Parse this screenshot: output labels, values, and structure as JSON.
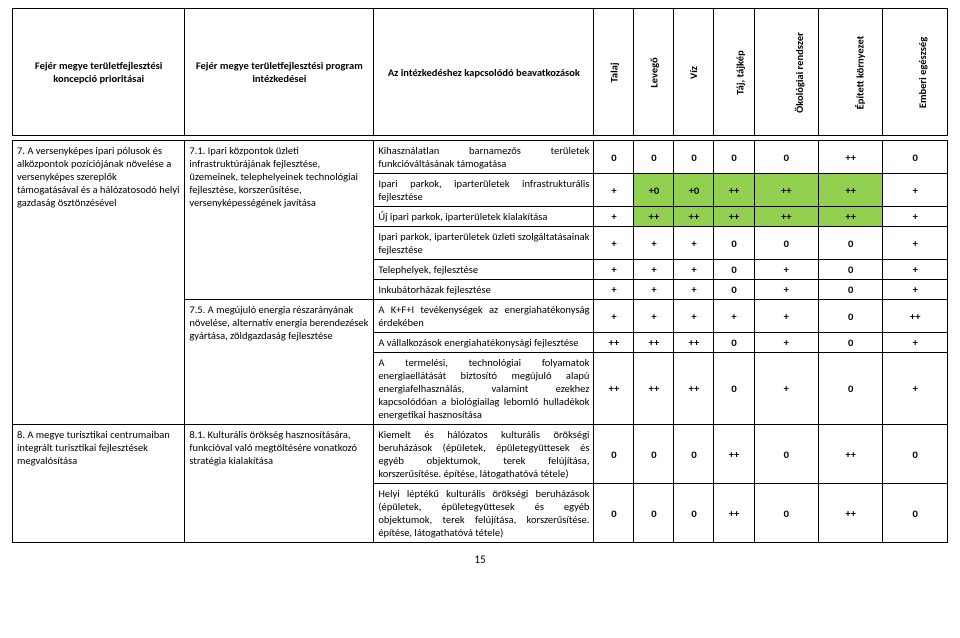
{
  "headers": {
    "c1": "Fejér megye területfejlesztési koncepció prioritásai",
    "c2": "Fejér megye területfejlesztési program intézkedései",
    "c3": "Az intézkedéshez kapcsolódó beavatkozások",
    "v1": "Talaj",
    "v2": "Levegő",
    "v3": "Víz",
    "v4": "Táj, tájkép",
    "v5": "Ökológiai rendszer",
    "v6": "Épített környezet",
    "v7": "Emberi egészség"
  },
  "pri1": "7. A versenyképes ipari pólusok és alközpontok pozíciójának növelése a versenyképes szereplők támogatásával és a hálózatosodó helyi gazdaság ösztönzésével",
  "pri2": "8. A megye turisztikai centrumaiban integrált turisztikai fejlesztések megvalósítása",
  "int1": "7.1. Ipari központok üzleti infrastruktúrájának fejlesztése, üzemeinek, telephelyeinek technológiai fejlesztése, korszerűsítése, versenyképességének javítása",
  "int2": "7.5. A megújuló energia részarányának növelése, alternatív energia berendezések gyártása, zöldgazdaság fejlesztése",
  "int3": "8.1. Kulturális örökség hasznosítására, funkcióval való megtöltésére vonatkozó stratégia kialakítása",
  "rows": [
    {
      "b": "Kihasználatlan barnamezős területek funkcióváltásának támogatása",
      "v": [
        "0",
        "0",
        "0",
        "0",
        "0",
        "++",
        "0"
      ],
      "g": [
        0,
        0,
        0,
        0,
        0,
        0,
        0
      ]
    },
    {
      "b": "Ipari parkok, iparterületek infrastrukturális fejlesztése",
      "v": [
        "+",
        "+0",
        "+0",
        "++",
        "++",
        "++",
        "+"
      ],
      "g": [
        0,
        1,
        1,
        1,
        1,
        1,
        0
      ]
    },
    {
      "b": "Új ipari parkok, iparterületek kialakítása",
      "v": [
        "+",
        "++",
        "++",
        "++",
        "++",
        "++",
        "+"
      ],
      "g": [
        0,
        1,
        1,
        1,
        1,
        1,
        0
      ]
    },
    {
      "b": "Ipari parkok, iparterületek üzleti szolgáltatásainak fejlesztése",
      "v": [
        "+",
        "+",
        "+",
        "0",
        "0",
        "0",
        "+"
      ],
      "g": [
        0,
        0,
        0,
        0,
        0,
        0,
        0
      ]
    },
    {
      "b": "Telephelyek, fejlesztése",
      "v": [
        "+",
        "+",
        "+",
        "0",
        "+",
        "0",
        "+"
      ],
      "g": [
        0,
        0,
        0,
        0,
        0,
        0,
        0
      ]
    },
    {
      "b": "Inkubátorházak fejlesztése",
      "v": [
        "+",
        "+",
        "+",
        "0",
        "+",
        "0",
        "+"
      ],
      "g": [
        0,
        0,
        0,
        0,
        0,
        0,
        0
      ]
    },
    {
      "b": "A K+F+I tevékenységek az energiahatékonyság érdekében",
      "v": [
        "+",
        "+",
        "+",
        "+",
        "+",
        "0",
        "++"
      ],
      "g": [
        0,
        0,
        0,
        0,
        0,
        0,
        0
      ]
    },
    {
      "b": "A vállalkozások energiahatékonysági fejlesztése",
      "v": [
        "++",
        "++",
        "++",
        "0",
        "+",
        "0",
        "+"
      ],
      "g": [
        0,
        0,
        0,
        0,
        0,
        0,
        0
      ]
    },
    {
      "b": "A termelési, technológiai folyamatok energiaellátását biztosító megújuló alapú energiafelhasználás, valamint ezekhez kapcsolódóan a biológiailag lebomló hulladékok energetikai hasznosítása",
      "v": [
        "++",
        "++",
        "++",
        "0",
        "+",
        "0",
        "+"
      ],
      "g": [
        0,
        0,
        0,
        0,
        0,
        0,
        0
      ]
    },
    {
      "b": "Kiemelt és hálózatos kulturális örökségi beruházások (épületek, épületegyüttesek és egyéb objektumok, terek felújítása, korszerűsítése. építése, látogathatóvá tétele)",
      "v": [
        "0",
        "0",
        "0",
        "++",
        "0",
        "++",
        "0"
      ],
      "g": [
        0,
        0,
        0,
        0,
        0,
        0,
        0
      ]
    },
    {
      "b": "Helyi léptékű kulturális örökségi beruházások (épületek, épületegyüttesek és egyéb objektumok, terek felújítása, korszerűsítése. építése, látogathatóvá tétele)",
      "v": [
        "0",
        "0",
        "0",
        "++",
        "0",
        "++",
        "0"
      ],
      "g": [
        0,
        0,
        0,
        0,
        0,
        0,
        0
      ]
    }
  ],
  "page": "15"
}
